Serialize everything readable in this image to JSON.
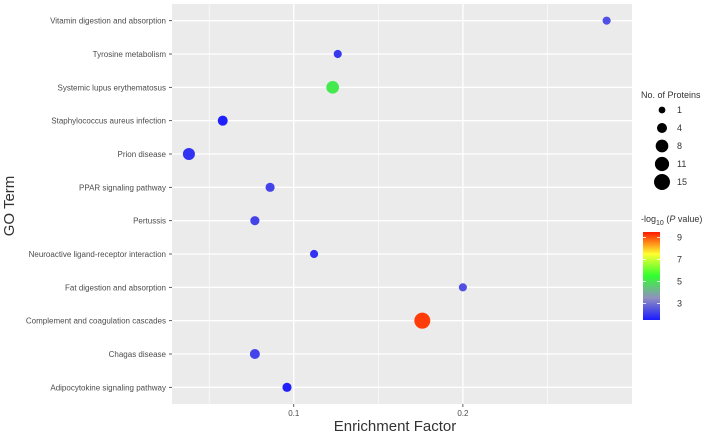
{
  "chart_data": {
    "type": "scatter",
    "xlabel": "Enrichment Factor",
    "ylabel": "GO Term",
    "xlim": [
      0.028,
      0.3
    ],
    "x_ticks": [
      0.1,
      0.2
    ],
    "x_tick_labels": [
      "0.1",
      "0.2"
    ],
    "grid": true,
    "categories": [
      "Vitamin digestion and absorption",
      "Tyrosine metabolism",
      "Systemic lupus erythematosus",
      "Staphylococcus aureus infection",
      "Prion disease",
      "PPAR signaling pathway",
      "Pertussis",
      "Neuroactive ligand-receptor interaction",
      "Fat digestion and absorption",
      "Complement and coagulation cascades",
      "Chagas disease",
      "Adipocytokine signaling pathway"
    ],
    "points": [
      {
        "term": "Vitamin digestion and absorption",
        "x": 0.285,
        "proteins": 2,
        "neg_log10_p": 2.4
      },
      {
        "term": "Tyrosine metabolism",
        "x": 0.126,
        "proteins": 2,
        "neg_log10_p": 2.0
      },
      {
        "term": "Systemic lupus erythematosus",
        "x": 0.123,
        "proteins": 8,
        "neg_log10_p": 5.1
      },
      {
        "term": "Staphylococcus aureus infection",
        "x": 0.058,
        "proteins": 4,
        "neg_log10_p": 1.6
      },
      {
        "term": "Prion disease",
        "x": 0.038,
        "proteins": 7,
        "neg_log10_p": 1.9
      },
      {
        "term": "PPAR signaling pathway",
        "x": 0.086,
        "proteins": 3,
        "neg_log10_p": 2.2
      },
      {
        "term": "Pertussis",
        "x": 0.077,
        "proteins": 3,
        "neg_log10_p": 2.2
      },
      {
        "term": "Neuroactive ligand-receptor interaction",
        "x": 0.112,
        "proteins": 2,
        "neg_log10_p": 1.9
      },
      {
        "term": "Fat digestion and absorption",
        "x": 0.2,
        "proteins": 2,
        "neg_log10_p": 2.4
      },
      {
        "term": "Complement and coagulation cascades",
        "x": 0.176,
        "proteins": 15,
        "neg_log10_p": 9.2
      },
      {
        "term": "Chagas disease",
        "x": 0.077,
        "proteins": 4,
        "neg_log10_p": 2.2
      },
      {
        "term": "Adipocytokine signaling pathway",
        "x": 0.096,
        "proteins": 3,
        "neg_log10_p": 1.6
      }
    ],
    "size_legend": {
      "title": "No. of Proteins",
      "levels": [
        1,
        4,
        8,
        11,
        15
      ]
    },
    "color_legend": {
      "title_prefix": "-log",
      "title_sub": "10",
      "title_open": " (",
      "title_italic": "P",
      "title_suffix": " value)",
      "ticks": [
        3,
        5,
        7,
        9
      ],
      "tick_labels": [
        "3",
        "5",
        "7",
        "9"
      ],
      "range": [
        1.5,
        9.5
      ],
      "colors": [
        "#1a1aff",
        "#9090c0",
        "#30ff30",
        "#ffff30",
        "#ff1a00"
      ]
    },
    "panel_color": "#ebebeb",
    "grid_color": "#ffffff"
  }
}
